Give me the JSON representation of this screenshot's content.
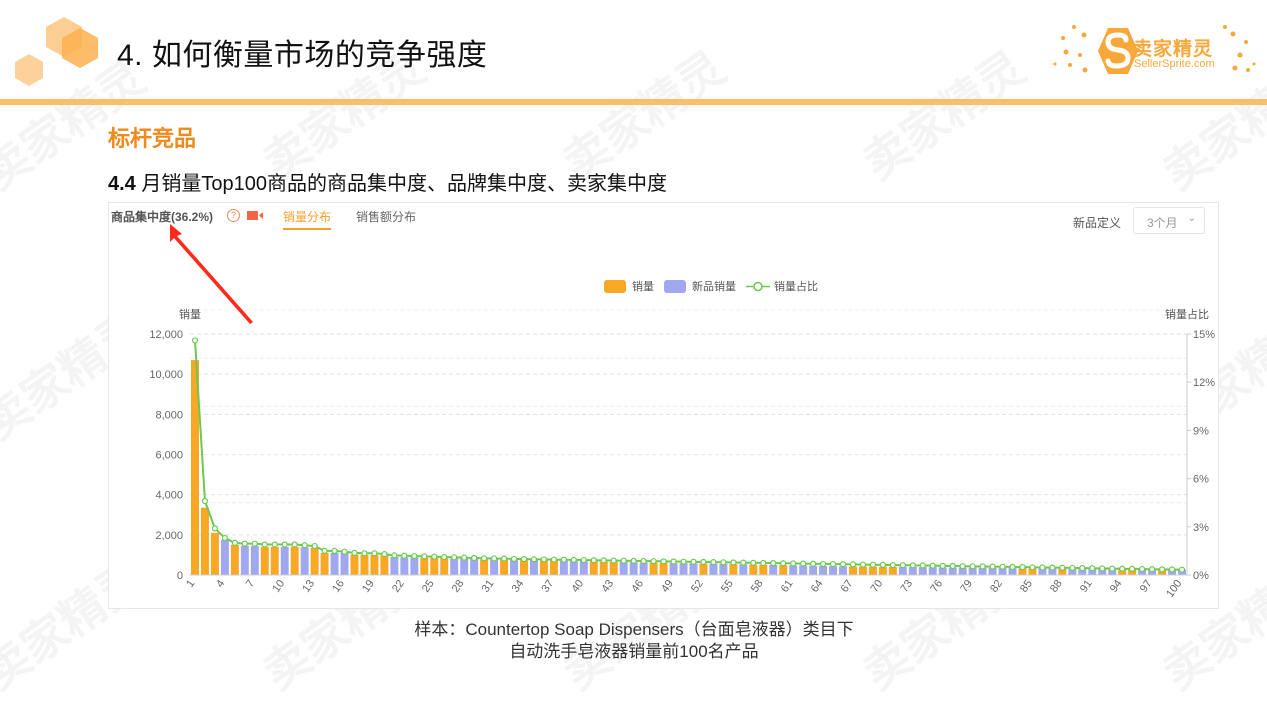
{
  "slide": {
    "title": "4. 如何衡量市场的竞争强度",
    "section": "标杆竞品",
    "subtitle_num": "4.4",
    "subtitle_text": " 月销量Top100商品的商品集中度、品牌集中度、卖家集中度",
    "caption_line1": "样本：Countertop Soap Dispensers（台面皂液器）类目下",
    "caption_line2": "自动洗手皂液器销量前100名产品",
    "watermark": "卖家精灵"
  },
  "logo": {
    "cn": "卖家精灵",
    "en": "SellerSprite.com",
    "color": "#f8a83b"
  },
  "panel": {
    "metric_label": "商品集中度(36.2%)",
    "help_icon": "?",
    "tabs": [
      {
        "label": "销量分布",
        "active": true
      },
      {
        "label": "销售额分布",
        "active": false
      }
    ],
    "new_def_label": "新品定义",
    "new_def_value": "3个月",
    "chevron": "⌄"
  },
  "chart_data": {
    "type": "bar",
    "title": "商品集中度(36.2%)",
    "xlabel": "",
    "ylabel": "销量",
    "y2label": "销量占比",
    "ylim": [
      0,
      12000
    ],
    "y2lim": [
      0,
      15
    ],
    "yticks": [
      "0",
      "2,000",
      "4,000",
      "6,000",
      "8,000",
      "10,000",
      "12,000"
    ],
    "y2ticks": [
      "0%",
      "3%",
      "6%",
      "9%",
      "12%",
      "15%"
    ],
    "xtick_labels": [
      "1",
      "4",
      "7",
      "10",
      "13",
      "16",
      "19",
      "22",
      "25",
      "28",
      "31",
      "34",
      "37",
      "40",
      "43",
      "46",
      "49",
      "52",
      "55",
      "58",
      "61",
      "64",
      "67",
      "70",
      "73",
      "76",
      "79",
      "82",
      "85",
      "88",
      "91",
      "94",
      "97",
      "100"
    ],
    "legend": [
      "销量",
      "新品销量",
      "销量占比"
    ],
    "legend_position": "top-center",
    "grid": true,
    "colors": {
      "sales": "#f9a825",
      "new_sales": "#a0a8f0",
      "share_line": "#6cc94f"
    },
    "categories": [
      1,
      2,
      3,
      4,
      5,
      6,
      7,
      8,
      9,
      10,
      11,
      12,
      13,
      14,
      15,
      16,
      17,
      18,
      19,
      20,
      21,
      22,
      23,
      24,
      25,
      26,
      27,
      28,
      29,
      30,
      31,
      32,
      33,
      34,
      35,
      36,
      37,
      38,
      39,
      40,
      41,
      42,
      43,
      44,
      45,
      46,
      47,
      48,
      49,
      50,
      51,
      52,
      53,
      54,
      55,
      56,
      57,
      58,
      59,
      60,
      61,
      62,
      63,
      64,
      65,
      66,
      67,
      68,
      69,
      70,
      71,
      72,
      73,
      74,
      75,
      76,
      77,
      78,
      79,
      80,
      81,
      82,
      83,
      84,
      85,
      86,
      87,
      88,
      89,
      90,
      91,
      92,
      93,
      94,
      95,
      96,
      97,
      98,
      99,
      100
    ],
    "series": [
      {
        "name": "销量",
        "values": [
          10700,
          3350,
          2100,
          1750,
          1500,
          1450,
          1450,
          1400,
          1400,
          1400,
          1400,
          1380,
          1350,
          1100,
          1100,
          1100,
          1020,
          1000,
          1000,
          980,
          900,
          880,
          880,
          860,
          850,
          850,
          830,
          820,
          800,
          780,
          770,
          760,
          750,
          740,
          740,
          730,
          720,
          710,
          700,
          690,
          680,
          670,
          660,
          650,
          640,
          630,
          620,
          610,
          600,
          590,
          580,
          570,
          560,
          550,
          540,
          530,
          520,
          510,
          500,
          490,
          480,
          470,
          460,
          450,
          440,
          430,
          425,
          420,
          415,
          410,
          405,
          400,
          395,
          390,
          385,
          380,
          375,
          370,
          365,
          360,
          355,
          350,
          345,
          340,
          335,
          330,
          325,
          320,
          315,
          310,
          305,
          300,
          295,
          290,
          285,
          280,
          275,
          270,
          265,
          260
        ]
      },
      {
        "name": "新品销量",
        "is_new": [
          0,
          0,
          0,
          1,
          0,
          1,
          1,
          0,
          0,
          1,
          0,
          1,
          0,
          0,
          1,
          1,
          0,
          0,
          0,
          0,
          1,
          1,
          1,
          0,
          0,
          0,
          1,
          1,
          1,
          0,
          1,
          0,
          1,
          0,
          1,
          0,
          0,
          1,
          1,
          1,
          0,
          0,
          0,
          1,
          1,
          1,
          0,
          0,
          1,
          1,
          1,
          0,
          1,
          1,
          0,
          1,
          0,
          0,
          1,
          0,
          1,
          1,
          1,
          1,
          1,
          1,
          0,
          0,
          0,
          0,
          0,
          1,
          1,
          1,
          1,
          1,
          1,
          1,
          1,
          1,
          1,
          1,
          1,
          0,
          0,
          1,
          1,
          0,
          1,
          1,
          1,
          1,
          1,
          0,
          0,
          1,
          1,
          0,
          1,
          1
        ]
      },
      {
        "name": "销量占比",
        "unit": "%",
        "values": [
          14.6,
          4.6,
          2.9,
          2.3,
          2.0,
          1.95,
          1.95,
          1.9,
          1.9,
          1.9,
          1.9,
          1.85,
          1.8,
          1.5,
          1.5,
          1.45,
          1.38,
          1.35,
          1.35,
          1.3,
          1.22,
          1.2,
          1.18,
          1.16,
          1.14,
          1.12,
          1.1,
          1.08,
          1.06,
          1.04,
          1.03,
          1.02,
          1.0,
          0.99,
          0.98,
          0.97,
          0.96,
          0.95,
          0.94,
          0.93,
          0.92,
          0.91,
          0.9,
          0.89,
          0.88,
          0.87,
          0.86,
          0.85,
          0.84,
          0.83,
          0.82,
          0.81,
          0.8,
          0.79,
          0.78,
          0.77,
          0.76,
          0.75,
          0.74,
          0.73,
          0.72,
          0.71,
          0.7,
          0.69,
          0.68,
          0.67,
          0.66,
          0.65,
          0.64,
          0.63,
          0.62,
          0.61,
          0.6,
          0.59,
          0.58,
          0.57,
          0.56,
          0.55,
          0.54,
          0.53,
          0.52,
          0.51,
          0.5,
          0.49,
          0.48,
          0.47,
          0.46,
          0.45,
          0.44,
          0.43,
          0.42,
          0.41,
          0.4,
          0.39,
          0.38,
          0.37,
          0.36,
          0.35,
          0.34,
          0.33
        ]
      }
    ]
  }
}
